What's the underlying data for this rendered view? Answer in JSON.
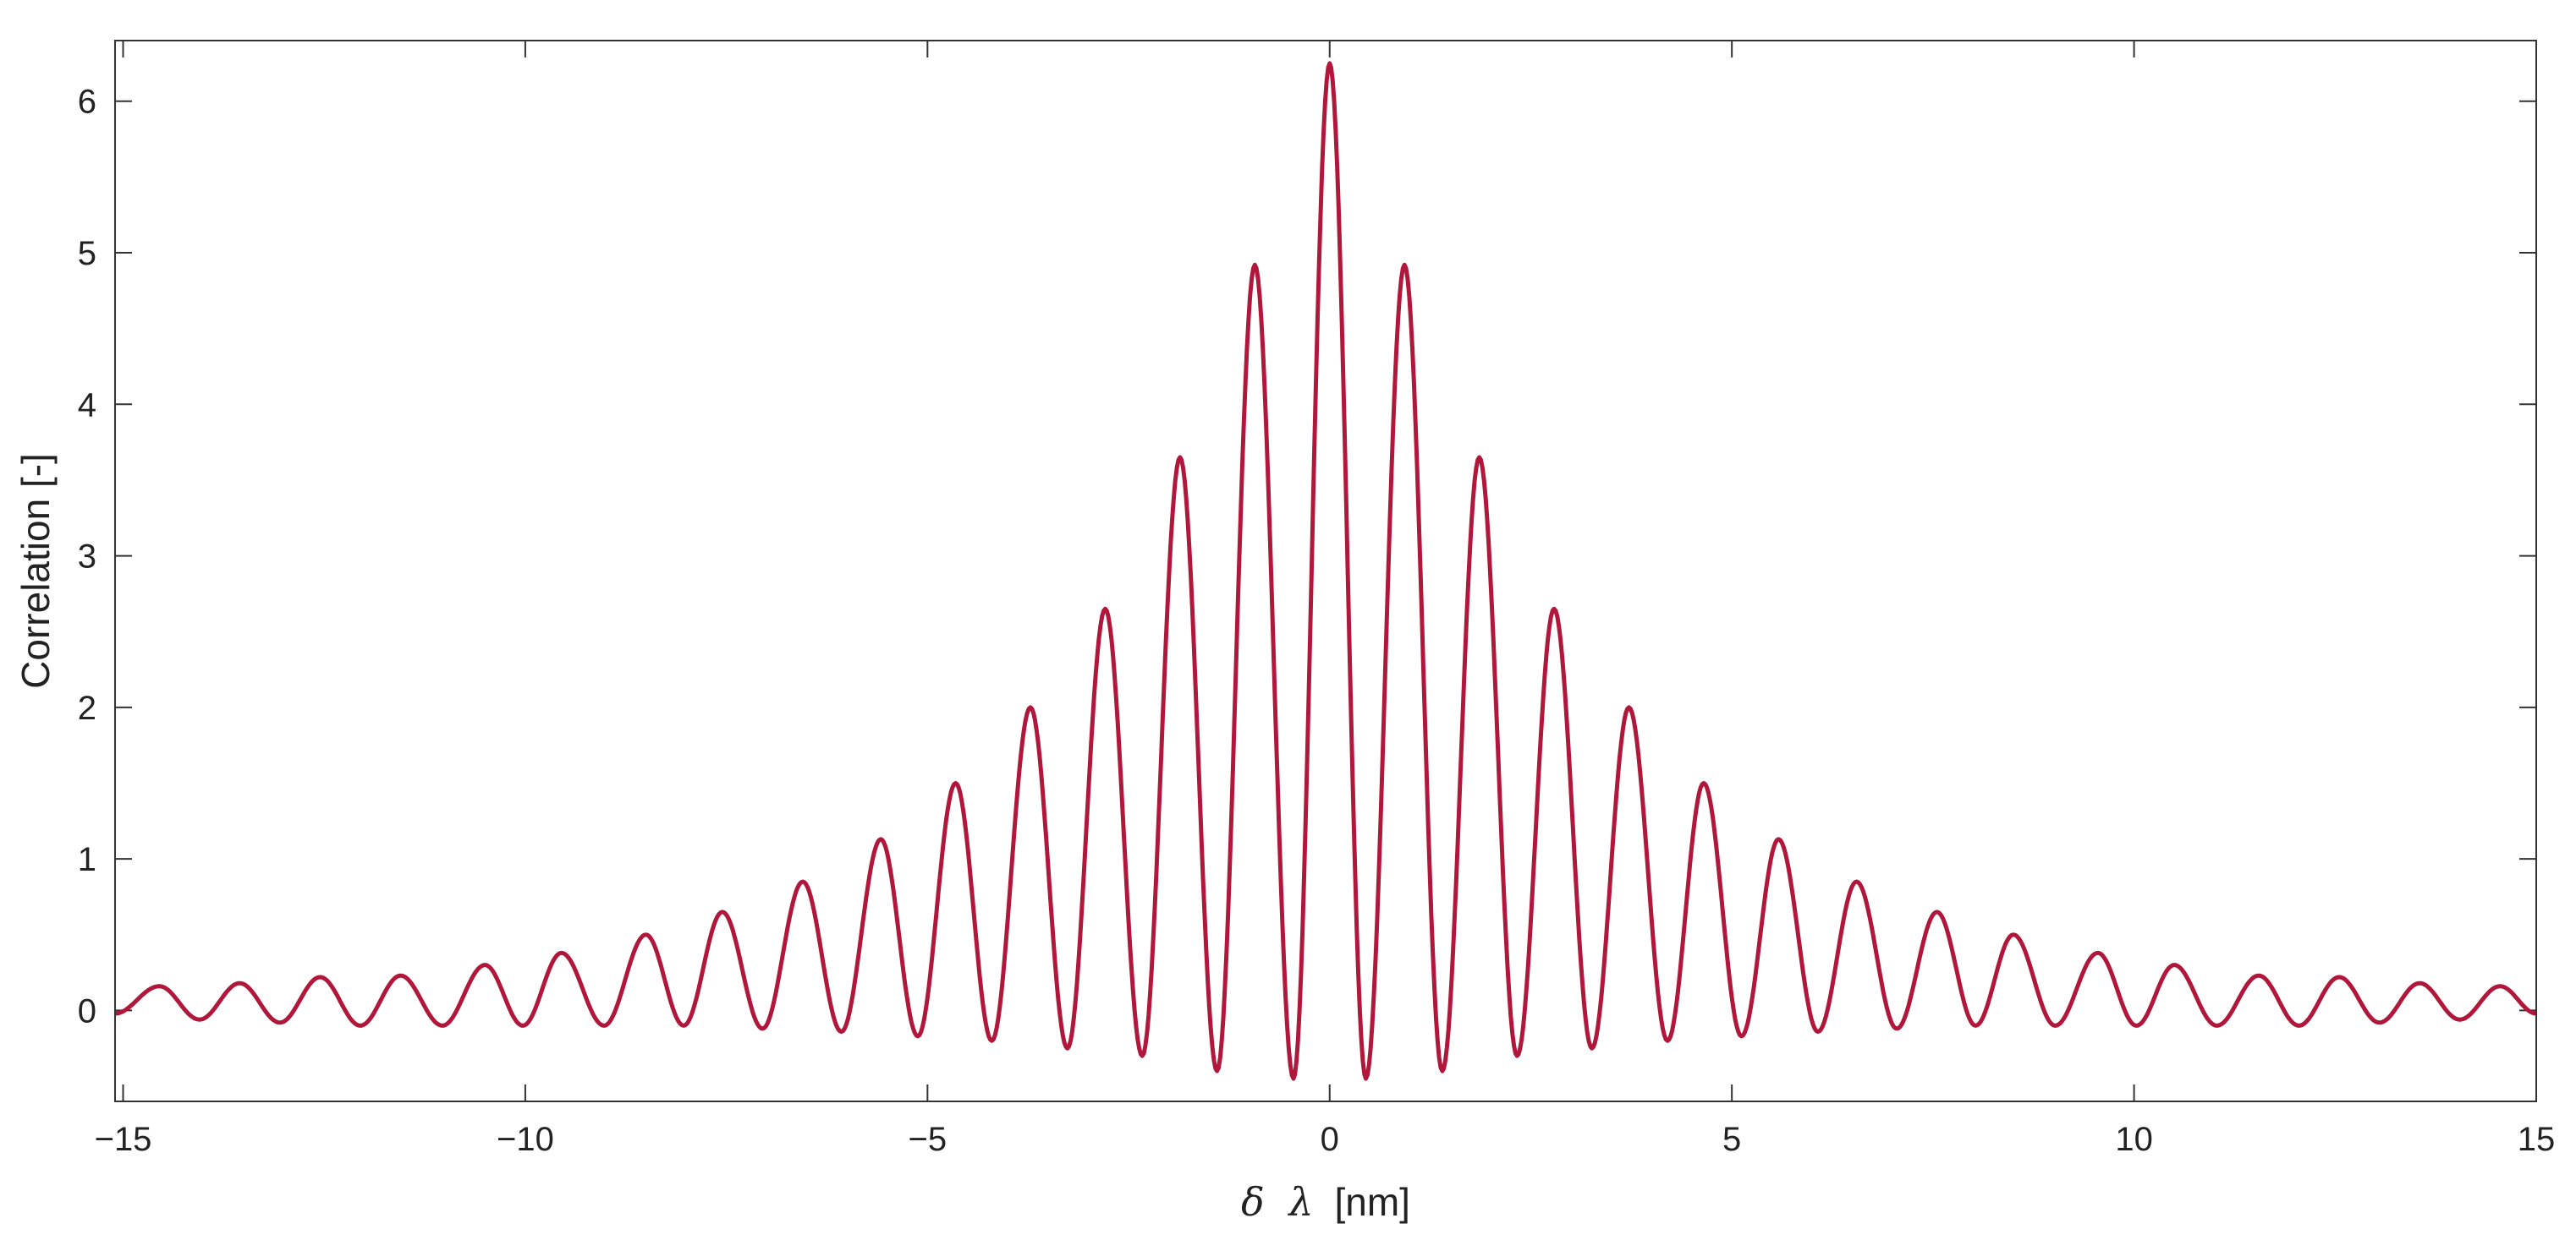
{
  "chart_data": {
    "type": "line",
    "xlabel_parts": {
      "delta": "δ",
      "lambda": "λ",
      "unit": "[nm]"
    },
    "ylabel": "Correlation [-]",
    "xlim": [
      -15.1,
      15
    ],
    "ylim": [
      -0.6,
      6.4
    ],
    "xticks": [
      -15,
      -10,
      -5,
      0,
      5,
      10,
      15
    ],
    "xtick_labels": [
      "−15",
      "−10",
      "−5",
      "0",
      "5",
      "10",
      "15"
    ],
    "yticks": [
      0,
      1,
      2,
      3,
      4,
      5,
      6
    ],
    "ytick_labels": [
      "0",
      "1",
      "2",
      "3",
      "4",
      "5",
      "6"
    ],
    "grid": false,
    "box": true,
    "line_color": "#b0173a",
    "series": [
      {
        "peaks": [
          {
            "x": 0.0,
            "y": 6.25
          },
          {
            "x": 0.93,
            "y": 4.92
          },
          {
            "x": -0.93,
            "y": 4.92
          },
          {
            "x": 1.86,
            "y": 3.65
          },
          {
            "x": -1.86,
            "y": 3.65
          },
          {
            "x": 2.79,
            "y": 2.65
          },
          {
            "x": -2.79,
            "y": 2.65
          },
          {
            "x": 3.72,
            "y": 2.0
          },
          {
            "x": -3.72,
            "y": 2.0
          },
          {
            "x": 4.65,
            "y": 1.5
          },
          {
            "x": -4.65,
            "y": 1.5
          },
          {
            "x": 5.58,
            "y": 1.13
          },
          {
            "x": -5.58,
            "y": 1.13
          },
          {
            "x": 6.55,
            "y": 0.85
          },
          {
            "x": -6.55,
            "y": 0.85
          },
          {
            "x": 7.55,
            "y": 0.65
          },
          {
            "x": -7.55,
            "y": 0.65
          },
          {
            "x": 8.5,
            "y": 0.5
          },
          {
            "x": -8.5,
            "y": 0.5
          },
          {
            "x": 9.55,
            "y": 0.38
          },
          {
            "x": -9.55,
            "y": 0.38
          },
          {
            "x": 10.5,
            "y": 0.3
          },
          {
            "x": -10.5,
            "y": 0.3
          },
          {
            "x": 11.55,
            "y": 0.23
          },
          {
            "x": -11.55,
            "y": 0.23
          },
          {
            "x": 12.55,
            "y": 0.22
          },
          {
            "x": -12.55,
            "y": 0.22
          },
          {
            "x": 13.55,
            "y": 0.18
          },
          {
            "x": -13.55,
            "y": 0.18
          },
          {
            "x": 14.55,
            "y": 0.16
          },
          {
            "x": -14.55,
            "y": 0.16
          }
        ],
        "troughs": [
          {
            "x": 0.45,
            "y": -0.45
          },
          {
            "x": -0.45,
            "y": -0.45
          },
          {
            "x": 1.4,
            "y": -0.4
          },
          {
            "x": -1.4,
            "y": -0.4
          },
          {
            "x": 2.33,
            "y": -0.3
          },
          {
            "x": -2.33,
            "y": -0.3
          },
          {
            "x": 3.26,
            "y": -0.25
          },
          {
            "x": -3.26,
            "y": -0.25
          },
          {
            "x": 4.2,
            "y": -0.2
          },
          {
            "x": -4.2,
            "y": -0.2
          },
          {
            "x": 5.12,
            "y": -0.17
          },
          {
            "x": -5.12,
            "y": -0.17
          },
          {
            "x": 6.07,
            "y": -0.14
          },
          {
            "x": -6.07,
            "y": -0.14
          },
          {
            "x": 7.05,
            "y": -0.12
          },
          {
            "x": -7.05,
            "y": -0.12
          },
          {
            "x": 8.03,
            "y": -0.1
          },
          {
            "x": -8.03,
            "y": -0.1
          },
          {
            "x": 9.02,
            "y": -0.1
          },
          {
            "x": -9.02,
            "y": -0.1
          },
          {
            "x": 10.03,
            "y": -0.1
          },
          {
            "x": -10.03,
            "y": -0.1
          },
          {
            "x": 11.03,
            "y": -0.1
          },
          {
            "x": -11.03,
            "y": -0.1
          },
          {
            "x": 12.05,
            "y": -0.1
          },
          {
            "x": -12.05,
            "y": -0.1
          },
          {
            "x": 13.05,
            "y": -0.08
          },
          {
            "x": -13.05,
            "y": -0.08
          },
          {
            "x": 14.05,
            "y": -0.06
          },
          {
            "x": -14.05,
            "y": -0.06
          },
          {
            "x": 15.0,
            "y": -0.02
          },
          {
            "x": -15.1,
            "y": -0.02
          }
        ]
      }
    ]
  }
}
